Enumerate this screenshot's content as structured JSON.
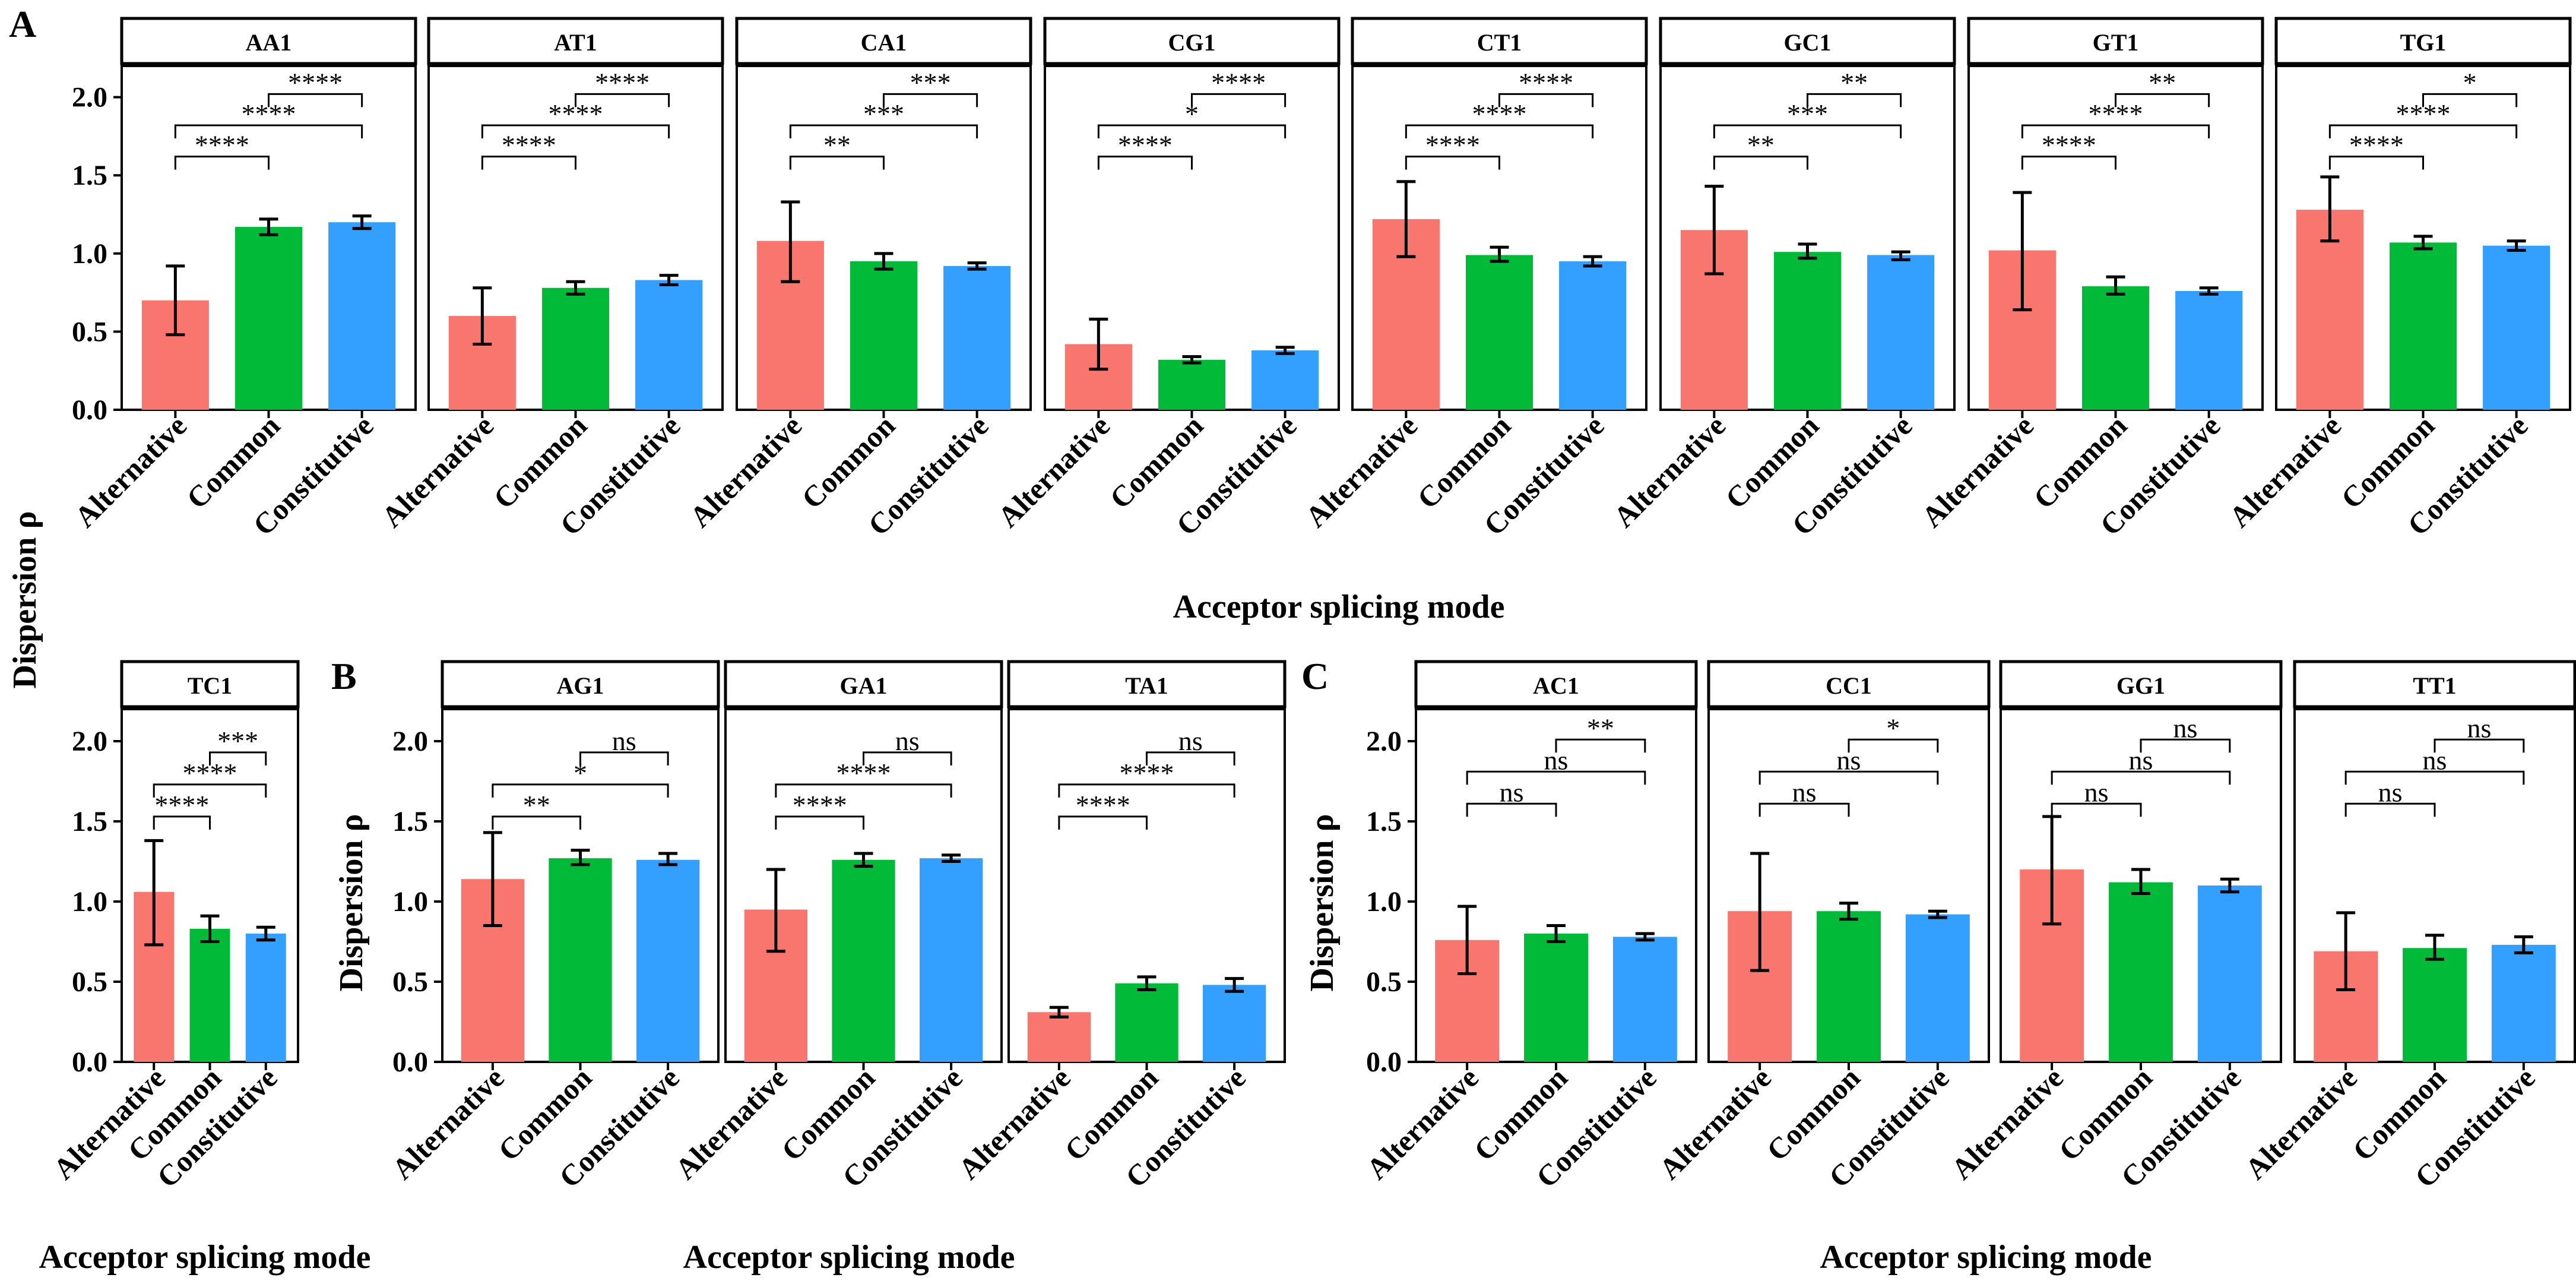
{
  "figure": {
    "panel_labels": [
      "A",
      "B",
      "C"
    ],
    "x_axis_title": "Acceptor splicing mode",
    "y_axis_title": "Dispersion ρ"
  },
  "colors": {
    "Alternative": "#F8766D",
    "Common": "#00BA38",
    "Constitutive": "#33A0FF"
  },
  "chart_data": {
    "type": "bar",
    "categories": [
      "Alternative",
      "Common",
      "Constitutive"
    ],
    "ylabel": "Dispersion ρ",
    "xlabel": "Acceptor splicing mode",
    "groups": [
      {
        "panel": "A",
        "facets": [
          {
            "name": "AA1",
            "ylim": [
              0,
              2.2
            ],
            "yticks": [
              "0.0",
              "0.5",
              "1.0",
              "1.5",
              "2.0"
            ],
            "values": [
              0.7,
              1.17,
              1.2
            ],
            "err_low": [
              0.48,
              1.12,
              1.16
            ],
            "err_high": [
              0.92,
              1.22,
              1.24
            ],
            "sig": [
              {
                "from": 0,
                "to": 1,
                "y": 1.62,
                "label": "****"
              },
              {
                "from": 0,
                "to": 2,
                "y": 1.82,
                "label": "****"
              },
              {
                "from": 1,
                "to": 2,
                "y": 2.02,
                "label": "****"
              }
            ]
          },
          {
            "name": "AT1",
            "ylim": [
              0,
              2.2
            ],
            "yticks": [],
            "values": [
              0.6,
              0.78,
              0.83
            ],
            "err_low": [
              0.42,
              0.74,
              0.8
            ],
            "err_high": [
              0.78,
              0.82,
              0.86
            ],
            "sig": [
              {
                "from": 0,
                "to": 1,
                "y": 1.62,
                "label": "****"
              },
              {
                "from": 0,
                "to": 2,
                "y": 1.82,
                "label": "****"
              },
              {
                "from": 1,
                "to": 2,
                "y": 2.02,
                "label": "****"
              }
            ]
          },
          {
            "name": "CA1",
            "ylim": [
              0,
              2.2
            ],
            "yticks": [],
            "values": [
              1.08,
              0.95,
              0.92
            ],
            "err_low": [
              0.82,
              0.9,
              0.9
            ],
            "err_high": [
              1.33,
              1.0,
              0.94
            ],
            "sig": [
              {
                "from": 0,
                "to": 1,
                "y": 1.62,
                "label": "**"
              },
              {
                "from": 0,
                "to": 2,
                "y": 1.82,
                "label": "***"
              },
              {
                "from": 1,
                "to": 2,
                "y": 2.02,
                "label": "***"
              }
            ]
          },
          {
            "name": "CG1",
            "ylim": [
              0,
              2.2
            ],
            "yticks": [],
            "values": [
              0.42,
              0.32,
              0.38
            ],
            "err_low": [
              0.26,
              0.3,
              0.36
            ],
            "err_high": [
              0.58,
              0.34,
              0.4
            ],
            "sig": [
              {
                "from": 0,
                "to": 1,
                "y": 1.62,
                "label": "****"
              },
              {
                "from": 0,
                "to": 2,
                "y": 1.82,
                "label": "*"
              },
              {
                "from": 1,
                "to": 2,
                "y": 2.02,
                "label": "****"
              }
            ]
          },
          {
            "name": "CT1",
            "ylim": [
              0,
              2.2
            ],
            "yticks": [],
            "values": [
              1.22,
              0.99,
              0.95
            ],
            "err_low": [
              0.98,
              0.95,
              0.92
            ],
            "err_high": [
              1.46,
              1.04,
              0.98
            ],
            "sig": [
              {
                "from": 0,
                "to": 1,
                "y": 1.62,
                "label": "****"
              },
              {
                "from": 0,
                "to": 2,
                "y": 1.82,
                "label": "****"
              },
              {
                "from": 1,
                "to": 2,
                "y": 2.02,
                "label": "****"
              }
            ]
          },
          {
            "name": "GC1",
            "ylim": [
              0,
              2.2
            ],
            "yticks": [],
            "values": [
              1.15,
              1.01,
              0.99
            ],
            "err_low": [
              0.87,
              0.97,
              0.96
            ],
            "err_high": [
              1.43,
              1.06,
              1.01
            ],
            "sig": [
              {
                "from": 0,
                "to": 1,
                "y": 1.62,
                "label": "**"
              },
              {
                "from": 0,
                "to": 2,
                "y": 1.82,
                "label": "***"
              },
              {
                "from": 1,
                "to": 2,
                "y": 2.02,
                "label": "**"
              }
            ]
          },
          {
            "name": "GT1",
            "ylim": [
              0,
              2.2
            ],
            "yticks": [],
            "values": [
              1.02,
              0.79,
              0.76
            ],
            "err_low": [
              0.64,
              0.74,
              0.74
            ],
            "err_high": [
              1.39,
              0.85,
              0.78
            ],
            "sig": [
              {
                "from": 0,
                "to": 1,
                "y": 1.62,
                "label": "****"
              },
              {
                "from": 0,
                "to": 2,
                "y": 1.82,
                "label": "****"
              },
              {
                "from": 1,
                "to": 2,
                "y": 2.02,
                "label": "**"
              }
            ]
          },
          {
            "name": "TG1",
            "ylim": [
              0,
              2.2
            ],
            "yticks": [],
            "values": [
              1.28,
              1.07,
              1.05
            ],
            "err_low": [
              1.08,
              1.03,
              1.02
            ],
            "err_high": [
              1.49,
              1.11,
              1.08
            ],
            "sig": [
              {
                "from": 0,
                "to": 1,
                "y": 1.62,
                "label": "****"
              },
              {
                "from": 0,
                "to": 2,
                "y": 1.82,
                "label": "****"
              },
              {
                "from": 1,
                "to": 2,
                "y": 2.02,
                "label": "*"
              }
            ]
          }
        ]
      },
      {
        "panel": "A-bottom",
        "facets": [
          {
            "name": "TC1",
            "ylim": [
              0,
              2.2
            ],
            "yticks": [
              "0.0",
              "0.5",
              "1.0",
              "1.5",
              "2.0"
            ],
            "values": [
              1.06,
              0.83,
              0.8
            ],
            "err_low": [
              0.73,
              0.75,
              0.76
            ],
            "err_high": [
              1.38,
              0.91,
              0.84
            ],
            "sig": [
              {
                "from": 0,
                "to": 1,
                "y": 1.53,
                "label": "****"
              },
              {
                "from": 0,
                "to": 2,
                "y": 1.73,
                "label": "****"
              },
              {
                "from": 1,
                "to": 2,
                "y": 1.93,
                "label": "***"
              }
            ]
          }
        ]
      },
      {
        "panel": "B",
        "facets": [
          {
            "name": "AG1",
            "ylim": [
              0,
              2.2
            ],
            "yticks": [
              "0.0",
              "0.5",
              "1.0",
              "1.5",
              "2.0"
            ],
            "values": [
              1.14,
              1.27,
              1.26
            ],
            "err_low": [
              0.85,
              1.23,
              1.23
            ],
            "err_high": [
              1.43,
              1.32,
              1.3
            ],
            "sig": [
              {
                "from": 0,
                "to": 1,
                "y": 1.53,
                "label": "**"
              },
              {
                "from": 0,
                "to": 2,
                "y": 1.73,
                "label": "*"
              },
              {
                "from": 1,
                "to": 2,
                "y": 1.93,
                "label": "ns"
              }
            ]
          },
          {
            "name": "GA1",
            "ylim": [
              0,
              2.2
            ],
            "yticks": [],
            "values": [
              0.95,
              1.26,
              1.27
            ],
            "err_low": [
              0.69,
              1.22,
              1.25
            ],
            "err_high": [
              1.2,
              1.3,
              1.29
            ],
            "sig": [
              {
                "from": 0,
                "to": 1,
                "y": 1.53,
                "label": "****"
              },
              {
                "from": 0,
                "to": 2,
                "y": 1.73,
                "label": "****"
              },
              {
                "from": 1,
                "to": 2,
                "y": 1.93,
                "label": "ns"
              }
            ]
          },
          {
            "name": "TA1",
            "ylim": [
              0,
              2.2
            ],
            "yticks": [],
            "values": [
              0.31,
              0.49,
              0.48
            ],
            "err_low": [
              0.28,
              0.45,
              0.44
            ],
            "err_high": [
              0.34,
              0.53,
              0.52
            ],
            "sig": [
              {
                "from": 0,
                "to": 1,
                "y": 1.53,
                "label": "****"
              },
              {
                "from": 0,
                "to": 2,
                "y": 1.73,
                "label": "****"
              },
              {
                "from": 1,
                "to": 2,
                "y": 1.93,
                "label": "ns"
              }
            ]
          }
        ]
      },
      {
        "panel": "C",
        "facets": [
          {
            "name": "AC1",
            "ylim": [
              0,
              2.2
            ],
            "yticks": [
              "0.0",
              "0.5",
              "1.0",
              "1.5",
              "2.0"
            ],
            "values": [
              0.76,
              0.8,
              0.78
            ],
            "err_low": [
              0.55,
              0.75,
              0.76
            ],
            "err_high": [
              0.97,
              0.85,
              0.8
            ],
            "sig": [
              {
                "from": 0,
                "to": 1,
                "y": 1.61,
                "label": "ns"
              },
              {
                "from": 0,
                "to": 2,
                "y": 1.81,
                "label": "ns"
              },
              {
                "from": 1,
                "to": 2,
                "y": 2.01,
                "label": "**"
              }
            ]
          },
          {
            "name": "CC1",
            "ylim": [
              0,
              2.2
            ],
            "yticks": [],
            "values": [
              0.94,
              0.94,
              0.92
            ],
            "err_low": [
              0.57,
              0.89,
              0.9
            ],
            "err_high": [
              1.3,
              0.99,
              0.94
            ],
            "sig": [
              {
                "from": 0,
                "to": 1,
                "y": 1.61,
                "label": "ns"
              },
              {
                "from": 0,
                "to": 2,
                "y": 1.81,
                "label": "ns"
              },
              {
                "from": 1,
                "to": 2,
                "y": 2.01,
                "label": "*"
              }
            ]
          },
          {
            "name": "GG1",
            "ylim": [
              0,
              2.2
            ],
            "yticks": [],
            "values": [
              1.2,
              1.12,
              1.1
            ],
            "err_low": [
              0.86,
              1.05,
              1.06
            ],
            "err_high": [
              1.53,
              1.2,
              1.14
            ],
            "sig": [
              {
                "from": 0,
                "to": 1,
                "y": 1.61,
                "label": "ns"
              },
              {
                "from": 0,
                "to": 2,
                "y": 1.81,
                "label": "ns"
              },
              {
                "from": 1,
                "to": 2,
                "y": 2.01,
                "label": "ns"
              }
            ]
          },
          {
            "name": "TT1",
            "ylim": [
              0,
              2.2
            ],
            "yticks": [],
            "values": [
              0.69,
              0.71,
              0.73
            ],
            "err_low": [
              0.45,
              0.64,
              0.68
            ],
            "err_high": [
              0.93,
              0.79,
              0.78
            ],
            "sig": [
              {
                "from": 0,
                "to": 1,
                "y": 1.61,
                "label": "ns"
              },
              {
                "from": 0,
                "to": 2,
                "y": 1.81,
                "label": "ns"
              },
              {
                "from": 1,
                "to": 2,
                "y": 2.01,
                "label": "ns"
              }
            ]
          }
        ]
      }
    ]
  }
}
